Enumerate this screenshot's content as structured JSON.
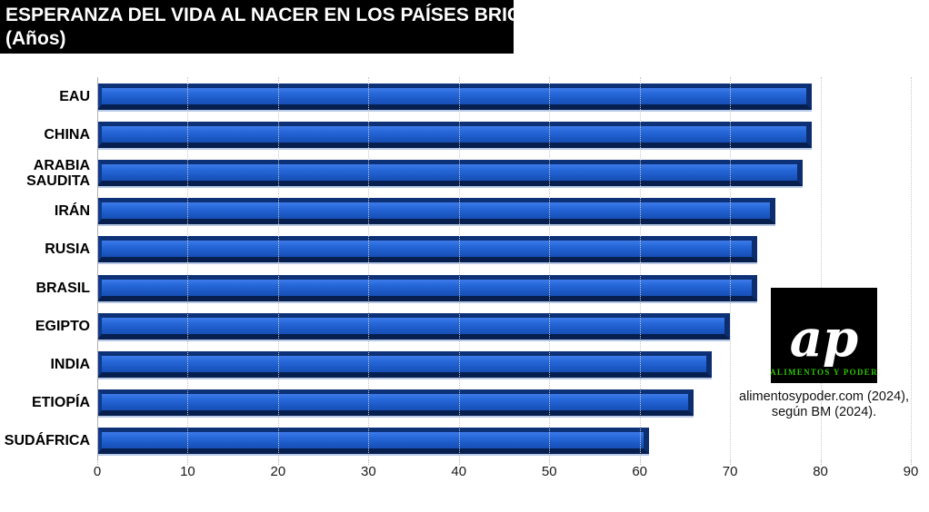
{
  "title": {
    "line1": "ESPERANZA DEL VIDA AL NACER EN LOS PAÍSES BRICS+",
    "line2": "(Años)"
  },
  "chart_data": {
    "type": "bar",
    "orientation": "horizontal",
    "title": "ESPERANZA DEL VIDA AL NACER EN LOS PAÍSES BRICS+ (Años)",
    "categories": [
      "EAU",
      "CHINA",
      "ARABIA SAUDITA",
      "IRÁN",
      "RUSIA",
      "BRASIL",
      "EGIPTO",
      "INDIA",
      "ETIOPÍA",
      "SUDÁFRICA"
    ],
    "values": [
      79,
      79,
      78,
      75,
      73,
      73,
      70,
      68,
      66,
      61
    ],
    "xlabel": "",
    "ylabel": "",
    "xlim": [
      0,
      90
    ],
    "xticks": [
      0,
      10,
      20,
      30,
      40,
      50,
      60,
      70,
      80,
      90
    ],
    "grid": "vertical dotted gridlines",
    "legend": "none",
    "bar_color": "#1c59c6",
    "bar_edge_color": "#0c2d6e",
    "bar_highlight": "#3d7be9"
  },
  "logo": {
    "monogram": "ap",
    "label": "ALIMENTOS Y PODER",
    "background": "#000000",
    "label_color": "#2ec400"
  },
  "source": {
    "line1": "alimentosypoder.com (2024),",
    "line2": "según BM (2024)."
  }
}
